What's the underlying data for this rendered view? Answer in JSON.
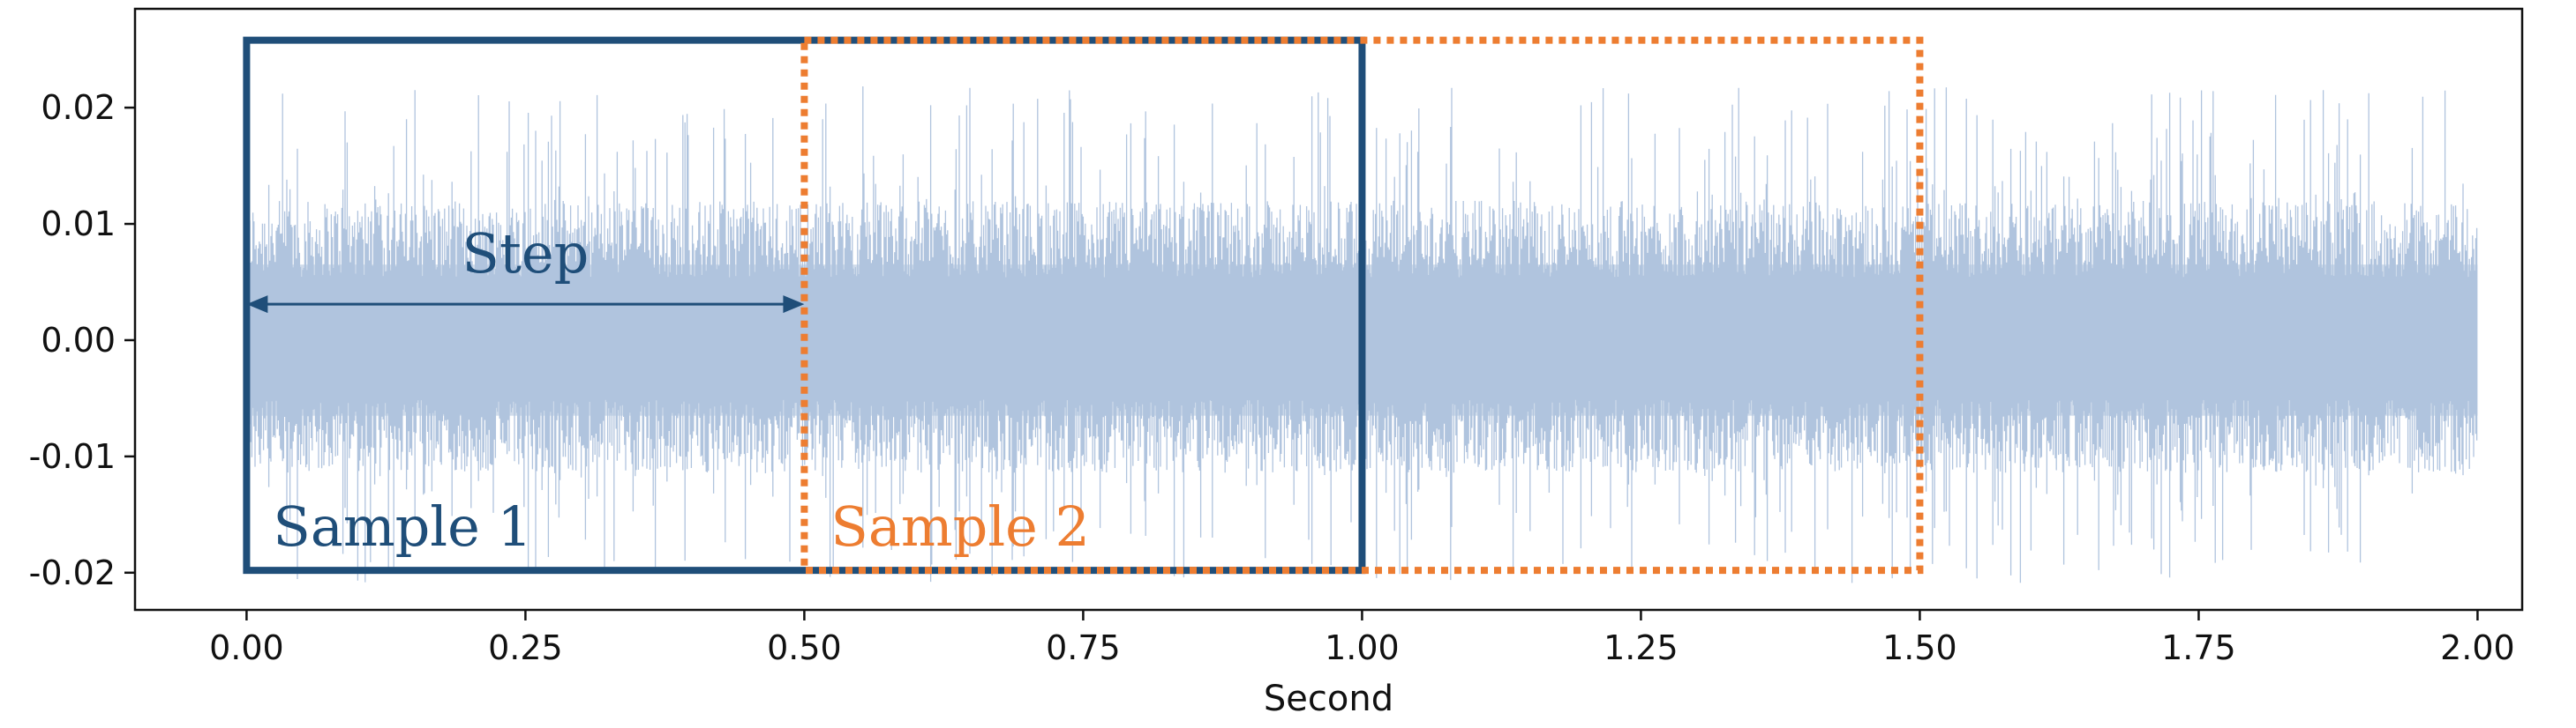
{
  "chart_data": {
    "type": "line",
    "title": "",
    "xlabel": "Second",
    "ylabel": "",
    "xlim": [
      -0.1,
      2.04
    ],
    "ylim": [
      -0.0232,
      0.0285
    ],
    "x_ticks": [
      0.0,
      0.25,
      0.5,
      0.75,
      1.0,
      1.25,
      1.5,
      1.75,
      2.0
    ],
    "x_tick_labels": [
      "0.00",
      "0.25",
      "0.50",
      "0.75",
      "1.00",
      "1.25",
      "1.50",
      "1.75",
      "2.00"
    ],
    "y_ticks": [
      0.02,
      0.01,
      0.0,
      -0.01,
      -0.02
    ],
    "y_tick_labels": [
      "0.02",
      "0.01",
      "0.00",
      "-0.01",
      "-0.02"
    ],
    "grid": false,
    "series": [
      {
        "x_range": [
          0.0,
          2.0
        ],
        "typical_amplitude": 0.012,
        "peak_amplitude": 0.022,
        "color": "#b0c4de"
      }
    ],
    "windows": [
      {
        "label": "Sample 1",
        "x_range": [
          0.0,
          1.0
        ],
        "y_range": [
          -0.0198,
          0.0258
        ],
        "color": "#1f4e79",
        "style": "solid"
      },
      {
        "label": "Sample 2",
        "x_range": [
          0.5,
          1.5
        ],
        "y_range": [
          -0.0198,
          0.0258
        ],
        "color": "#ed7d31",
        "style": "dotted"
      }
    ],
    "step_annotation": {
      "label": "Step",
      "x_range": [
        0.0,
        0.5
      ],
      "y": 0.0031,
      "color": "#1f4e79"
    }
  }
}
